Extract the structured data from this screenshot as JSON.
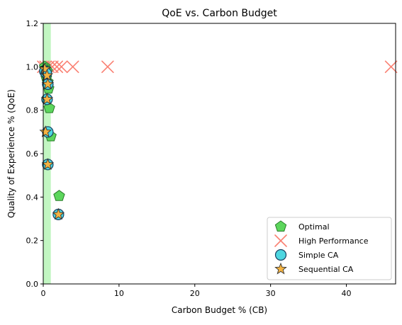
{
  "chart_data": {
    "type": "scatter",
    "title": "QoE vs. Carbon Budget",
    "xlabel": "Carbon Budget % (CB)",
    "ylabel": "Quality of Experience % (QoE)",
    "xlim": [
      0,
      46.5
    ],
    "ylim": [
      0,
      1.2
    ],
    "xticks": [
      0,
      10,
      20,
      30,
      40
    ],
    "yticks": [
      0.0,
      0.2,
      0.4,
      0.6,
      0.8,
      1.0,
      1.2
    ],
    "xtick_labels": [
      "0",
      "10",
      "20",
      "30",
      "40"
    ],
    "ytick_labels": [
      "0.0",
      "0.2",
      "0.4",
      "0.6",
      "0.8",
      "1.0",
      "1.2"
    ],
    "grid": false,
    "legend_position": "bottom-right",
    "highlight_band": {
      "x_from": 0,
      "x_to": 1.0,
      "color": "#90ee90"
    },
    "series": [
      {
        "name": "Optimal",
        "marker": "pentagon",
        "color": "#5cd65c",
        "edge_color": "#2a7a2a",
        "points": [
          {
            "x": 0.2,
            "y": 1.0
          },
          {
            "x": 0.3,
            "y": 0.99
          },
          {
            "x": 0.5,
            "y": 0.98
          },
          {
            "x": 0.4,
            "y": 0.95
          },
          {
            "x": 0.6,
            "y": 0.93
          },
          {
            "x": 0.7,
            "y": 0.9
          },
          {
            "x": 0.8,
            "y": 0.81
          },
          {
            "x": 1.0,
            "y": 0.68
          },
          {
            "x": 2.1,
            "y": 0.405
          }
        ]
      },
      {
        "name": "High Performance",
        "marker": "x",
        "color": "#fa8072",
        "points": [
          {
            "x": 0.0,
            "y": 1.0
          },
          {
            "x": 0.3,
            "y": 1.0
          },
          {
            "x": 0.7,
            "y": 1.0
          },
          {
            "x": 1.2,
            "y": 1.0
          },
          {
            "x": 1.8,
            "y": 1.0
          },
          {
            "x": 2.4,
            "y": 1.0
          },
          {
            "x": 3.9,
            "y": 1.0
          },
          {
            "x": 8.5,
            "y": 1.0
          },
          {
            "x": 45.9,
            "y": 1.0
          }
        ]
      },
      {
        "name": "Simple CA",
        "marker": "circle",
        "color": "#4dd6e0",
        "edge_color": "#1a3f60",
        "points": [
          {
            "x": 0.2,
            "y": 0.98
          },
          {
            "x": 0.4,
            "y": 0.97
          },
          {
            "x": 0.6,
            "y": 0.92
          },
          {
            "x": 0.5,
            "y": 0.85
          },
          {
            "x": 0.6,
            "y": 0.7
          },
          {
            "x": 0.6,
            "y": 0.55
          },
          {
            "x": 2.0,
            "y": 0.32
          }
        ]
      },
      {
        "name": "Sequential CA",
        "marker": "star",
        "color": "#f5b342",
        "edge_color": "#333333",
        "points": [
          {
            "x": 0.2,
            "y": 0.99
          },
          {
            "x": 0.5,
            "y": 0.96
          },
          {
            "x": 0.6,
            "y": 0.92
          },
          {
            "x": 0.5,
            "y": 0.85
          },
          {
            "x": 0.3,
            "y": 0.7
          },
          {
            "x": 0.6,
            "y": 0.55
          },
          {
            "x": 2.0,
            "y": 0.32
          }
        ]
      }
    ]
  }
}
